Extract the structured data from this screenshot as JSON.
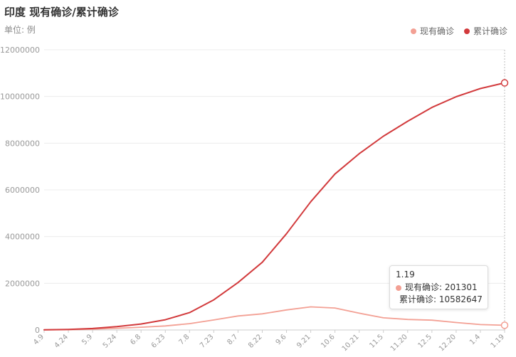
{
  "header": {
    "title": "印度 现有确诊/累计确诊",
    "unit": "单位: 例"
  },
  "colors": {
    "active": "#f3a094",
    "cumulative": "#d23a3c",
    "grid": "#ececec",
    "axis_text": "#999999"
  },
  "tooltip": {
    "date": "1.19",
    "rows": [
      {
        "label": "现有确诊: 201301",
        "color": "#f3a094"
      },
      {
        "label": "累计确诊: 10582647",
        "color": "#d23a3c"
      }
    ]
  },
  "chart_data": {
    "type": "line",
    "title": "印度 现有确诊/累计确诊",
    "ylabel": "单位: 例",
    "ylim": [
      0,
      12000000
    ],
    "yticks": [
      0,
      2000000,
      4000000,
      6000000,
      8000000,
      10000000,
      12000000
    ],
    "grid": true,
    "legend_position": "top-right",
    "categories": [
      "4.9",
      "4.24",
      "5.9",
      "5.24",
      "6.8",
      "6.23",
      "7.8",
      "7.23",
      "8.7",
      "8.22",
      "9.6",
      "9.21",
      "10.6",
      "10.21",
      "11.5",
      "11.20",
      "12.5",
      "12.20",
      "1.4",
      "1.19"
    ],
    "series": [
      {
        "name": "现有确诊",
        "values": [
          5000,
          13000,
          36000,
          73000,
          120000,
          175000,
          270000,
          430000,
          600000,
          690000,
          860000,
          990000,
          940000,
          720000,
          520000,
          450000,
          420000,
          320000,
          230000,
          201301
        ]
      },
      {
        "name": "累计确诊",
        "values": [
          6000,
          23000,
          63000,
          145000,
          256000,
          440000,
          743000,
          1290000,
          2030000,
          2900000,
          4120000,
          5490000,
          6680000,
          7550000,
          8300000,
          8940000,
          9530000,
          9990000,
          10340000,
          10582647
        ]
      }
    ]
  }
}
